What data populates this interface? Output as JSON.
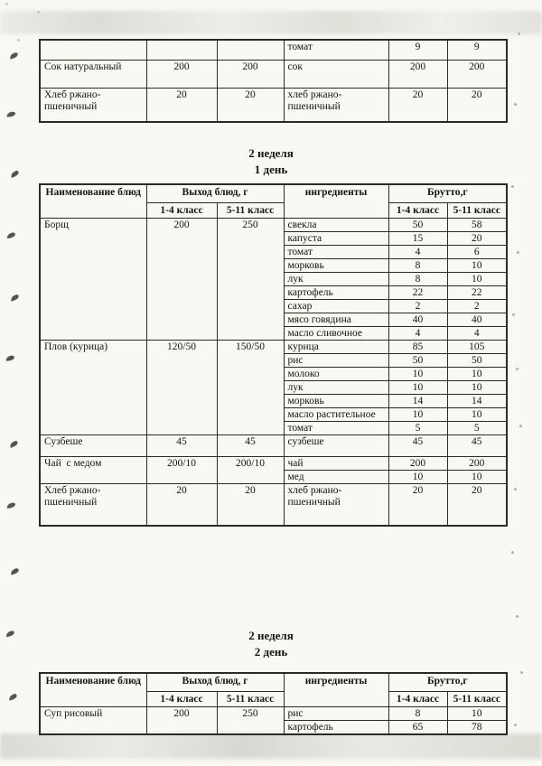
{
  "colors": {
    "paper": "#f9f8f3",
    "ink": "#14130f",
    "table_border": "#2b2a23",
    "scan_band": "#a8a69e",
    "smudge": "#403e35"
  },
  "sections": [
    {
      "week": "2 неделя",
      "day": "1 день"
    },
    {
      "week": "2 неделя",
      "day": "2 день"
    }
  ],
  "table_header": {
    "dish": "Наименование блюд",
    "output": "Выход блюд, г",
    "ingredients": "ингредиенты",
    "brutto": "Брутто,г",
    "class_1_4": "1-4 класс",
    "class_5_11": "5-11 класс"
  },
  "tables": {
    "continued": {
      "groups": [
        {
          "dish": "",
          "out_1_4": "",
          "out_5_11": "",
          "ingredients": [
            [
              "томат",
              "9",
              "9"
            ]
          ]
        },
        {
          "dish": "Сок натуральный",
          "out_1_4": "200",
          "out_5_11": "200",
          "ingredients": [
            [
              "сок",
              "200",
              "200"
            ]
          ]
        },
        {
          "dish": "Хлеб ржано-пшеничный",
          "out_1_4": "20",
          "out_5_11": "20",
          "ingredients": [
            [
              "хлеб ржано-пшеничный",
              "20",
              "20"
            ]
          ]
        }
      ]
    },
    "week2_day1": {
      "groups": [
        {
          "dish": "Борщ",
          "out_1_4": "200",
          "out_5_11": "250",
          "ingredients": [
            [
              "свекла",
              "50",
              "58"
            ],
            [
              "капуста",
              "15",
              "20"
            ],
            [
              "томат",
              "4",
              "6"
            ],
            [
              "морковь",
              "8",
              "10"
            ],
            [
              "лук",
              "8",
              "10"
            ],
            [
              "картофель",
              "22",
              "22"
            ],
            [
              "сахар",
              "2",
              "2"
            ],
            [
              "мясо говядина",
              "40",
              "40"
            ],
            [
              "масло сливочное",
              "4",
              "4"
            ]
          ]
        },
        {
          "dish": "Плов (курица)",
          "out_1_4": "120/50",
          "out_5_11": "150/50",
          "ingredients": [
            [
              "курица",
              "85",
              "105"
            ],
            [
              "рис",
              "50",
              "50"
            ],
            [
              "молоко",
              "10",
              "10"
            ],
            [
              "лук",
              "10",
              "10"
            ],
            [
              "морковь",
              "14",
              "14"
            ],
            [
              "масло растительное",
              "10",
              "10"
            ],
            [
              "томат",
              "5",
              "5"
            ]
          ]
        },
        {
          "dish": "Сузбеше",
          "out_1_4": "45",
          "out_5_11": "45",
          "ingredients": [
            [
              "сузбеше",
              "45",
              "45"
            ]
          ]
        },
        {
          "dish": "Чай  с медом",
          "out_1_4": "200/10",
          "out_5_11": "200/10",
          "ingredients": [
            [
              "чай",
              "200",
              "200"
            ],
            [
              "мед",
              "10",
              "10"
            ]
          ]
        },
        {
          "dish": "Хлеб ржано-пшеничный",
          "out_1_4": "20",
          "out_5_11": "20",
          "ingredients": [
            [
              "хлеб ржано-пшеничный",
              "20",
              "20"
            ]
          ]
        }
      ]
    },
    "week2_day2": {
      "groups": [
        {
          "dish": "Суп рисовый",
          "out_1_4": "200",
          "out_5_11": "250",
          "ingredients": [
            [
              "рис",
              "8",
              "10"
            ],
            [
              "картофель",
              "65",
              "78"
            ]
          ]
        }
      ]
    }
  }
}
